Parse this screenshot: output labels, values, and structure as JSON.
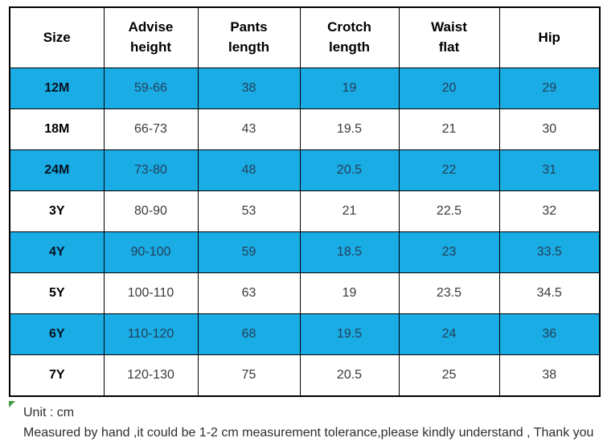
{
  "table": {
    "headers": [
      "Size",
      "Advise\nheight",
      "Pants\nlength",
      "Crotch\nlength",
      "Waist\nflat",
      "Hip"
    ],
    "rows": [
      {
        "size": "12M",
        "advise_height": "59-66",
        "pants_length": "38",
        "crotch_length": "19",
        "waist_flat": "20",
        "hip": "29"
      },
      {
        "size": "18M",
        "advise_height": "66-73",
        "pants_length": "43",
        "crotch_length": "19.5",
        "waist_flat": "21",
        "hip": "30"
      },
      {
        "size": "24M",
        "advise_height": "73-80",
        "pants_length": "48",
        "crotch_length": "20.5",
        "waist_flat": "22",
        "hip": "31"
      },
      {
        "size": "3Y",
        "advise_height": "80-90",
        "pants_length": "53",
        "crotch_length": "21",
        "waist_flat": "22.5",
        "hip": "32"
      },
      {
        "size": "4Y",
        "advise_height": "90-100",
        "pants_length": "59",
        "crotch_length": "18.5",
        "waist_flat": "23",
        "hip": "33.5"
      },
      {
        "size": "5Y",
        "advise_height": "100-110",
        "pants_length": "63",
        "crotch_length": "19",
        "waist_flat": "23.5",
        "hip": "34.5"
      },
      {
        "size": "6Y",
        "advise_height": "110-120",
        "pants_length": "68",
        "crotch_length": "19.5",
        "waist_flat": "24",
        "hip": "36"
      },
      {
        "size": "7Y",
        "advise_height": "120-130",
        "pants_length": "75",
        "crotch_length": "20.5",
        "waist_flat": "25",
        "hip": "38"
      }
    ]
  },
  "footer": {
    "unit": "Unit : cm",
    "note": "Measured by hand ,it could be 1-2 cm measurement tolerance,please kindly understand , Thank you !"
  },
  "colors": {
    "highlight_row": "#1aace4",
    "border": "#000000",
    "corner_marker_green": "#3f9b3f"
  }
}
